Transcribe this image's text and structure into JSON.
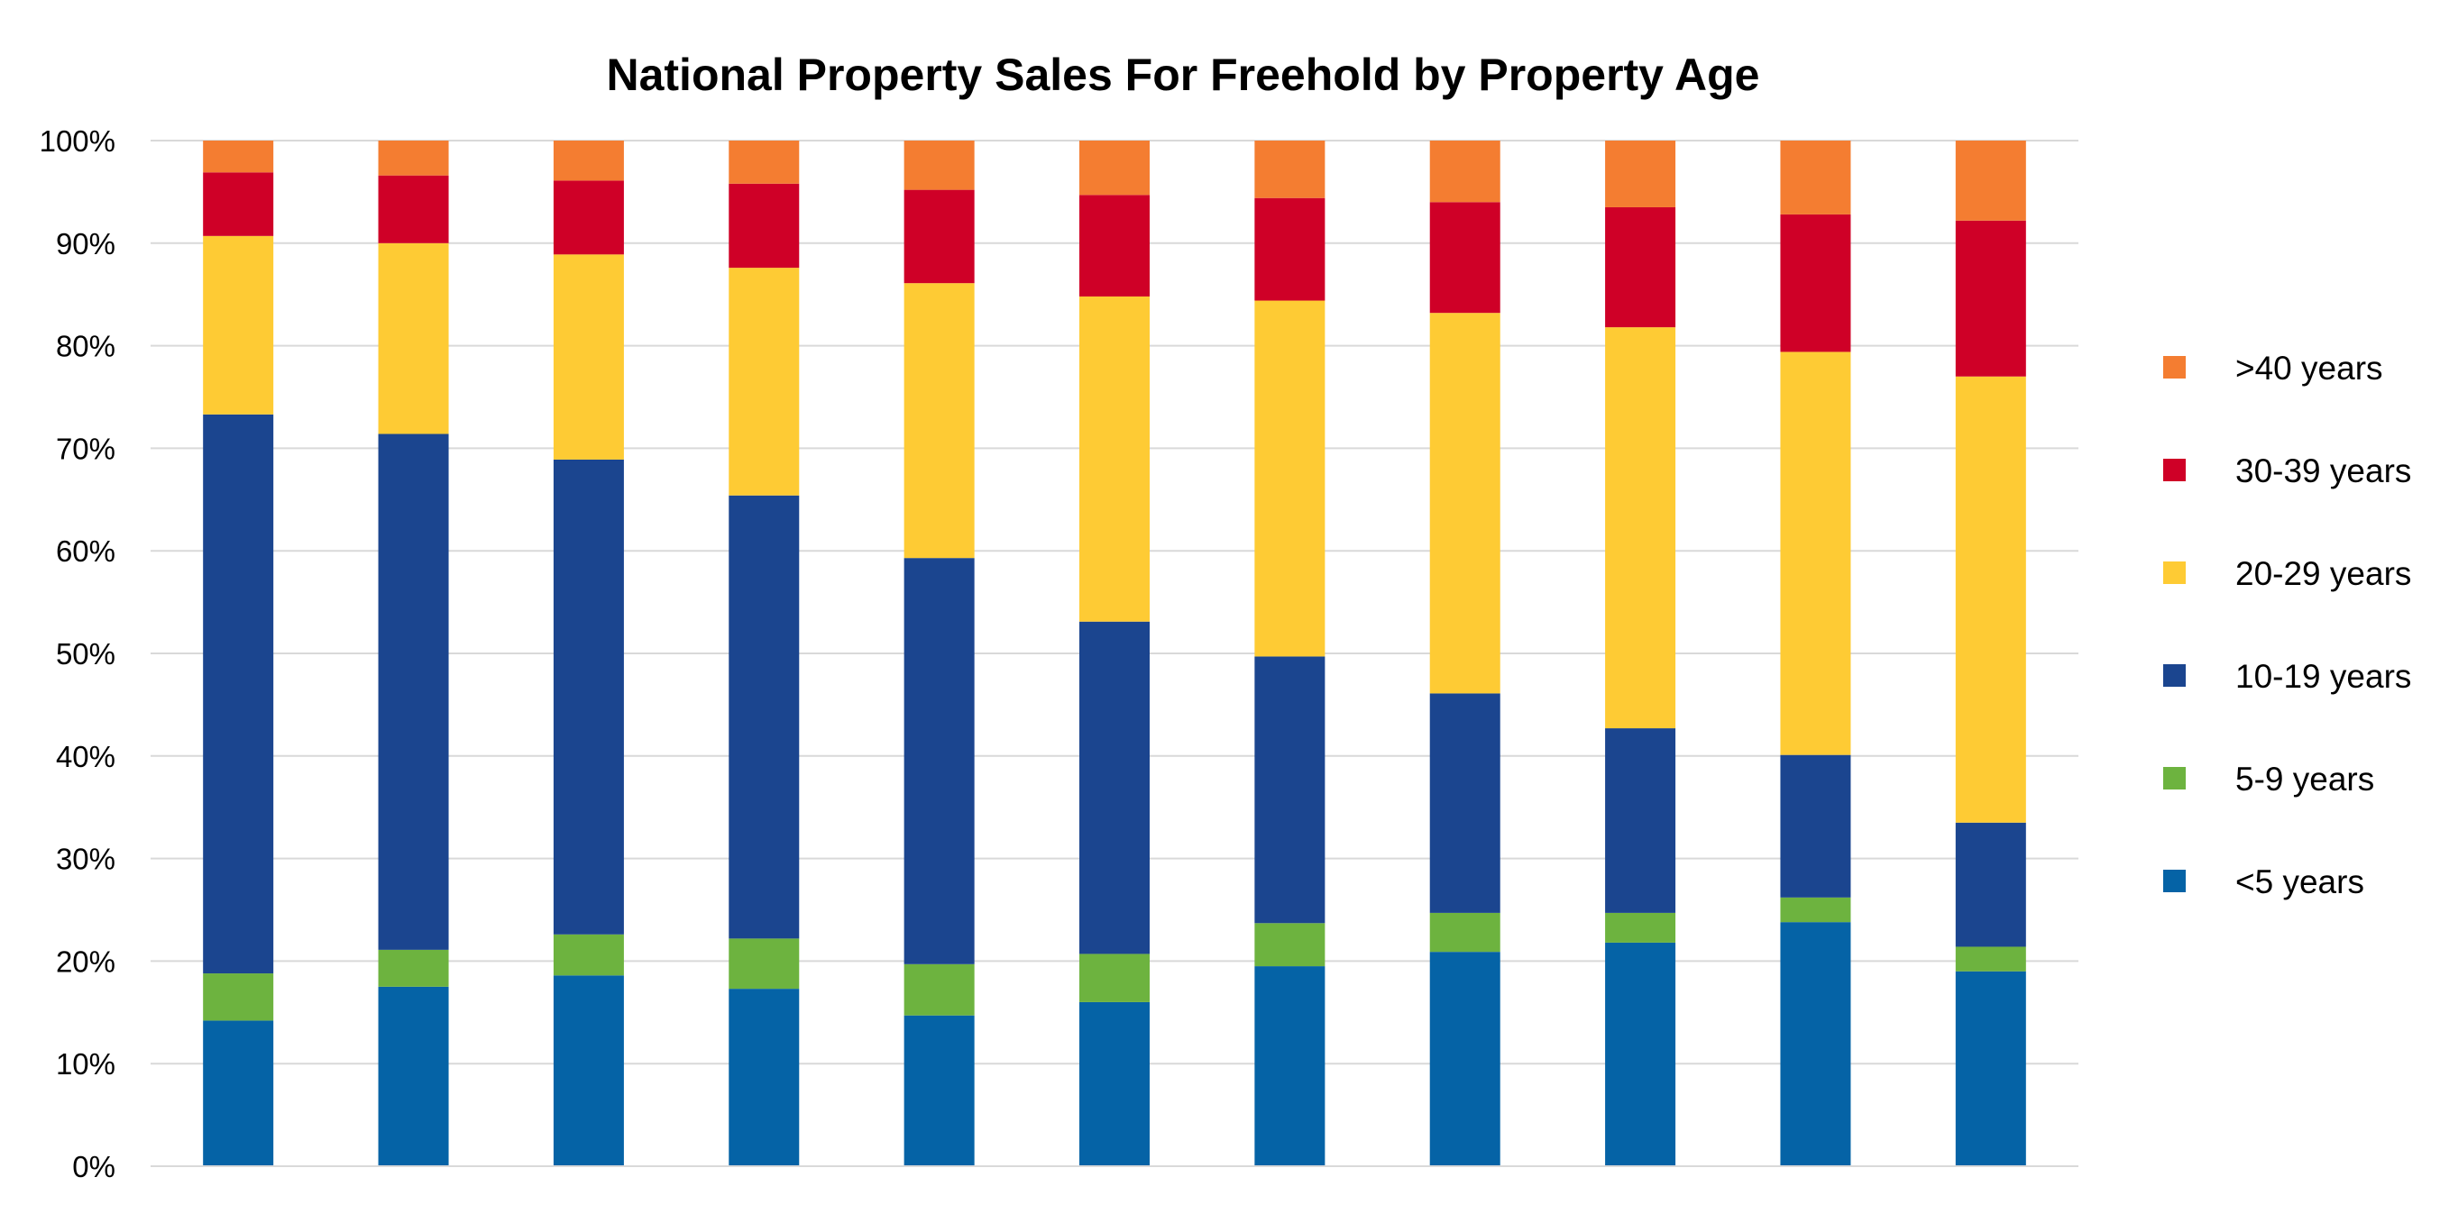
{
  "chart_data": {
    "type": "bar",
    "stacked": true,
    "percent_stacked": true,
    "title": "National Property Sales For Freehold by Property Age",
    "xlabel": "",
    "ylabel": "",
    "ylim": [
      0,
      100
    ],
    "y_ticks": [
      "0%",
      "10%",
      "20%",
      "30%",
      "40%",
      "50%",
      "60%",
      "70%",
      "80%",
      "90%",
      "100%"
    ],
    "categories": [
      "",
      "",
      "",
      "",
      "",
      "",
      "",
      "",
      "",
      "",
      ""
    ],
    "grid": true,
    "legend_position": "right",
    "series": [
      {
        "name": "<5 years",
        "color": "#0563A6",
        "values": [
          14.2,
          17.5,
          18.6,
          17.3,
          14.7,
          16.0,
          19.5,
          20.9,
          21.8,
          23.8,
          19.0
        ]
      },
      {
        "name": "5-9 years",
        "color": "#6DB33F",
        "values": [
          4.6,
          3.6,
          4.0,
          4.9,
          5.0,
          4.7,
          4.2,
          3.8,
          2.9,
          2.4,
          2.4
        ]
      },
      {
        "name": "10-19 years",
        "color": "#1B458F",
        "values": [
          54.5,
          50.3,
          46.3,
          43.2,
          39.6,
          32.4,
          26.0,
          21.4,
          18.0,
          13.9,
          12.1
        ]
      },
      {
        "name": "20-29 years",
        "color": "#FECB34",
        "values": [
          17.4,
          18.6,
          20.0,
          22.2,
          26.8,
          31.7,
          34.7,
          37.1,
          39.1,
          39.3,
          43.5
        ]
      },
      {
        "name": "30-39 years",
        "color": "#CF0027",
        "values": [
          6.2,
          6.6,
          7.2,
          8.2,
          9.1,
          9.9,
          10.0,
          10.8,
          11.7,
          13.4,
          15.2
        ]
      },
      {
        "name": ">40 years",
        "color": "#F47D31",
        "values": [
          3.1,
          3.4,
          3.9,
          4.2,
          4.8,
          5.3,
          5.6,
          6.0,
          6.5,
          7.2,
          7.8
        ]
      }
    ],
    "legend_order": [
      ">40 years",
      "30-39 years",
      "20-29 years",
      "10-19 years",
      "5-9 years",
      "<5 years"
    ]
  }
}
